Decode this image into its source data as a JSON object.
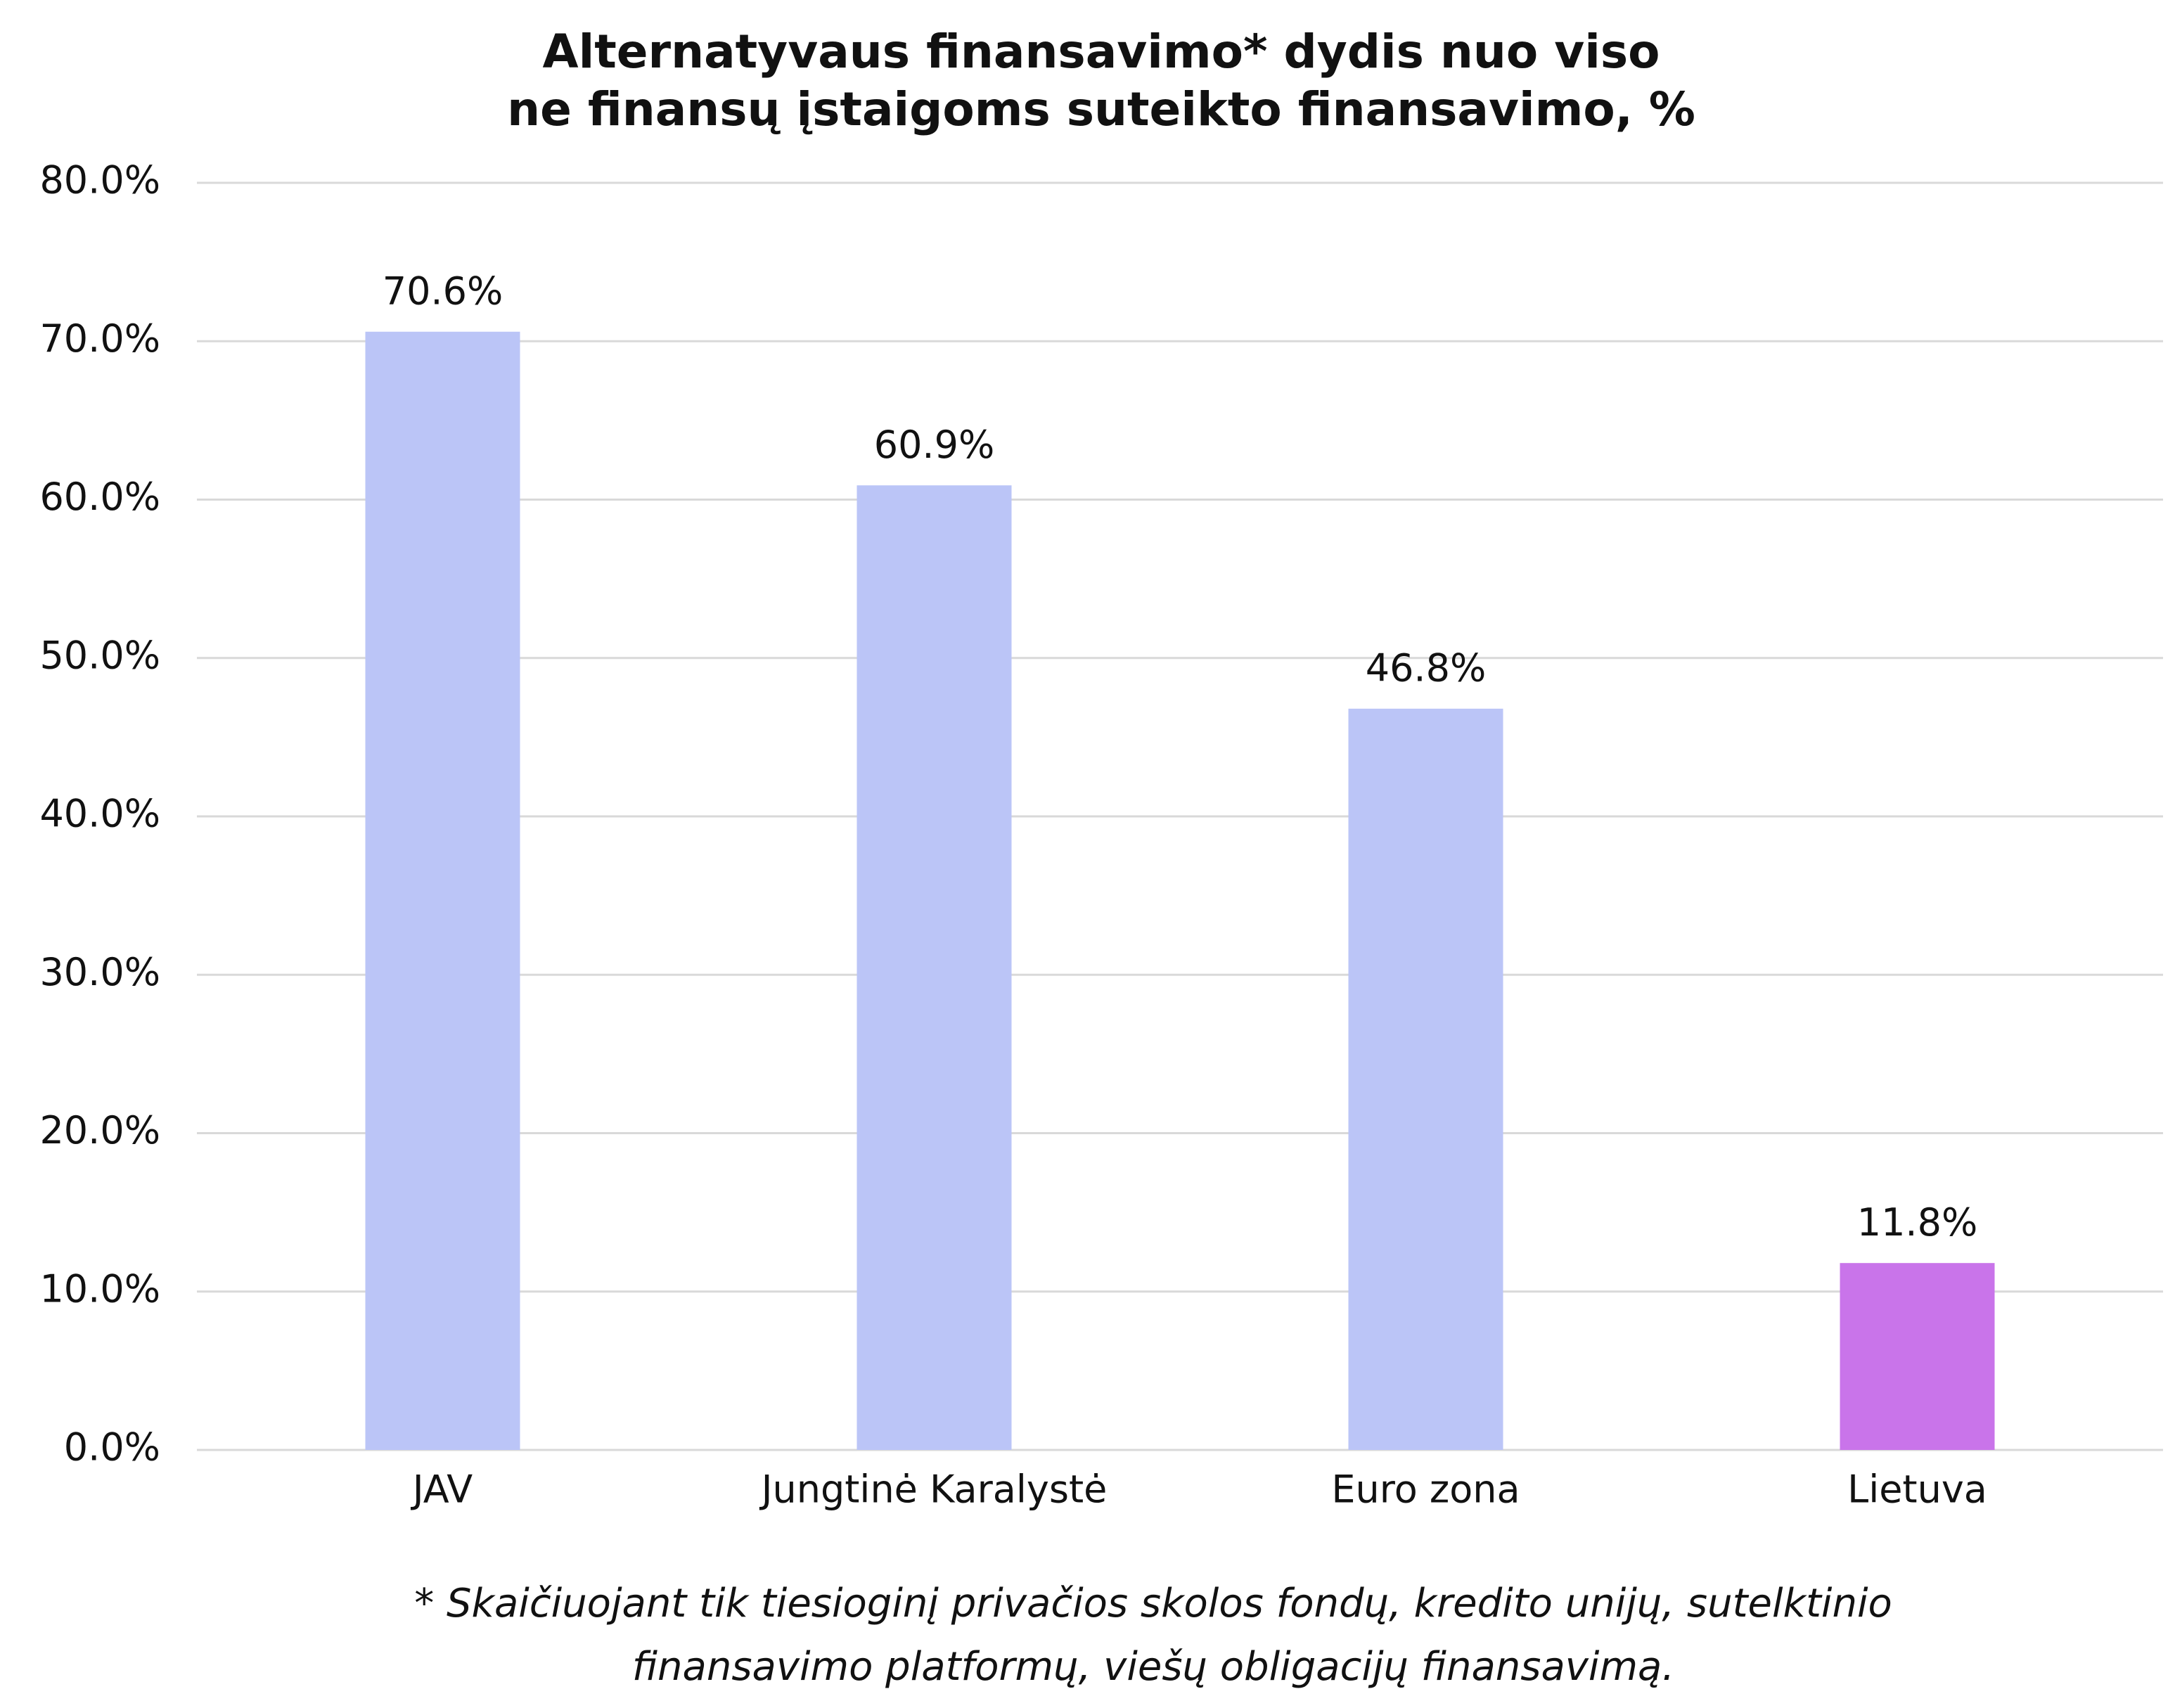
{
  "chart_data": {
    "type": "bar",
    "title": [
      "Alternatyvaus finansavimo* dydis nuo viso",
      "ne finansų įstaigoms suteikto finansavimo, %"
    ],
    "categories": [
      "JAV",
      "Jungtinė Karalystė",
      "Euro zona",
      "Lietuva"
    ],
    "values": [
      70.6,
      60.9,
      46.8,
      11.8
    ],
    "value_labels": [
      "70.6%",
      "60.9%",
      "46.8%",
      "11.8%"
    ],
    "colors": [
      "#bbc5f7",
      "#bbc5f7",
      "#bbc5f7",
      "#c974ea"
    ],
    "ylim": [
      0,
      80
    ],
    "yticks": [
      {
        "value": 0,
        "label": "0.0%"
      },
      {
        "value": 10,
        "label": "10.0%"
      },
      {
        "value": 20,
        "label": "20.0%"
      },
      {
        "value": 30,
        "label": "30.0%"
      },
      {
        "value": 40,
        "label": "40.0%"
      },
      {
        "value": 50,
        "label": "50.0%"
      },
      {
        "value": 60,
        "label": "60.0%"
      },
      {
        "value": 70,
        "label": "70.0%"
      },
      {
        "value": 80,
        "label": "80.0%"
      }
    ],
    "grid": true,
    "note": [
      "* Skaičiuojant tik tiesioginį privačios skolos fondų, kredito unijų, sutelktinio",
      "finansavimo platformų, viešų obligacijų finansavimą."
    ]
  }
}
